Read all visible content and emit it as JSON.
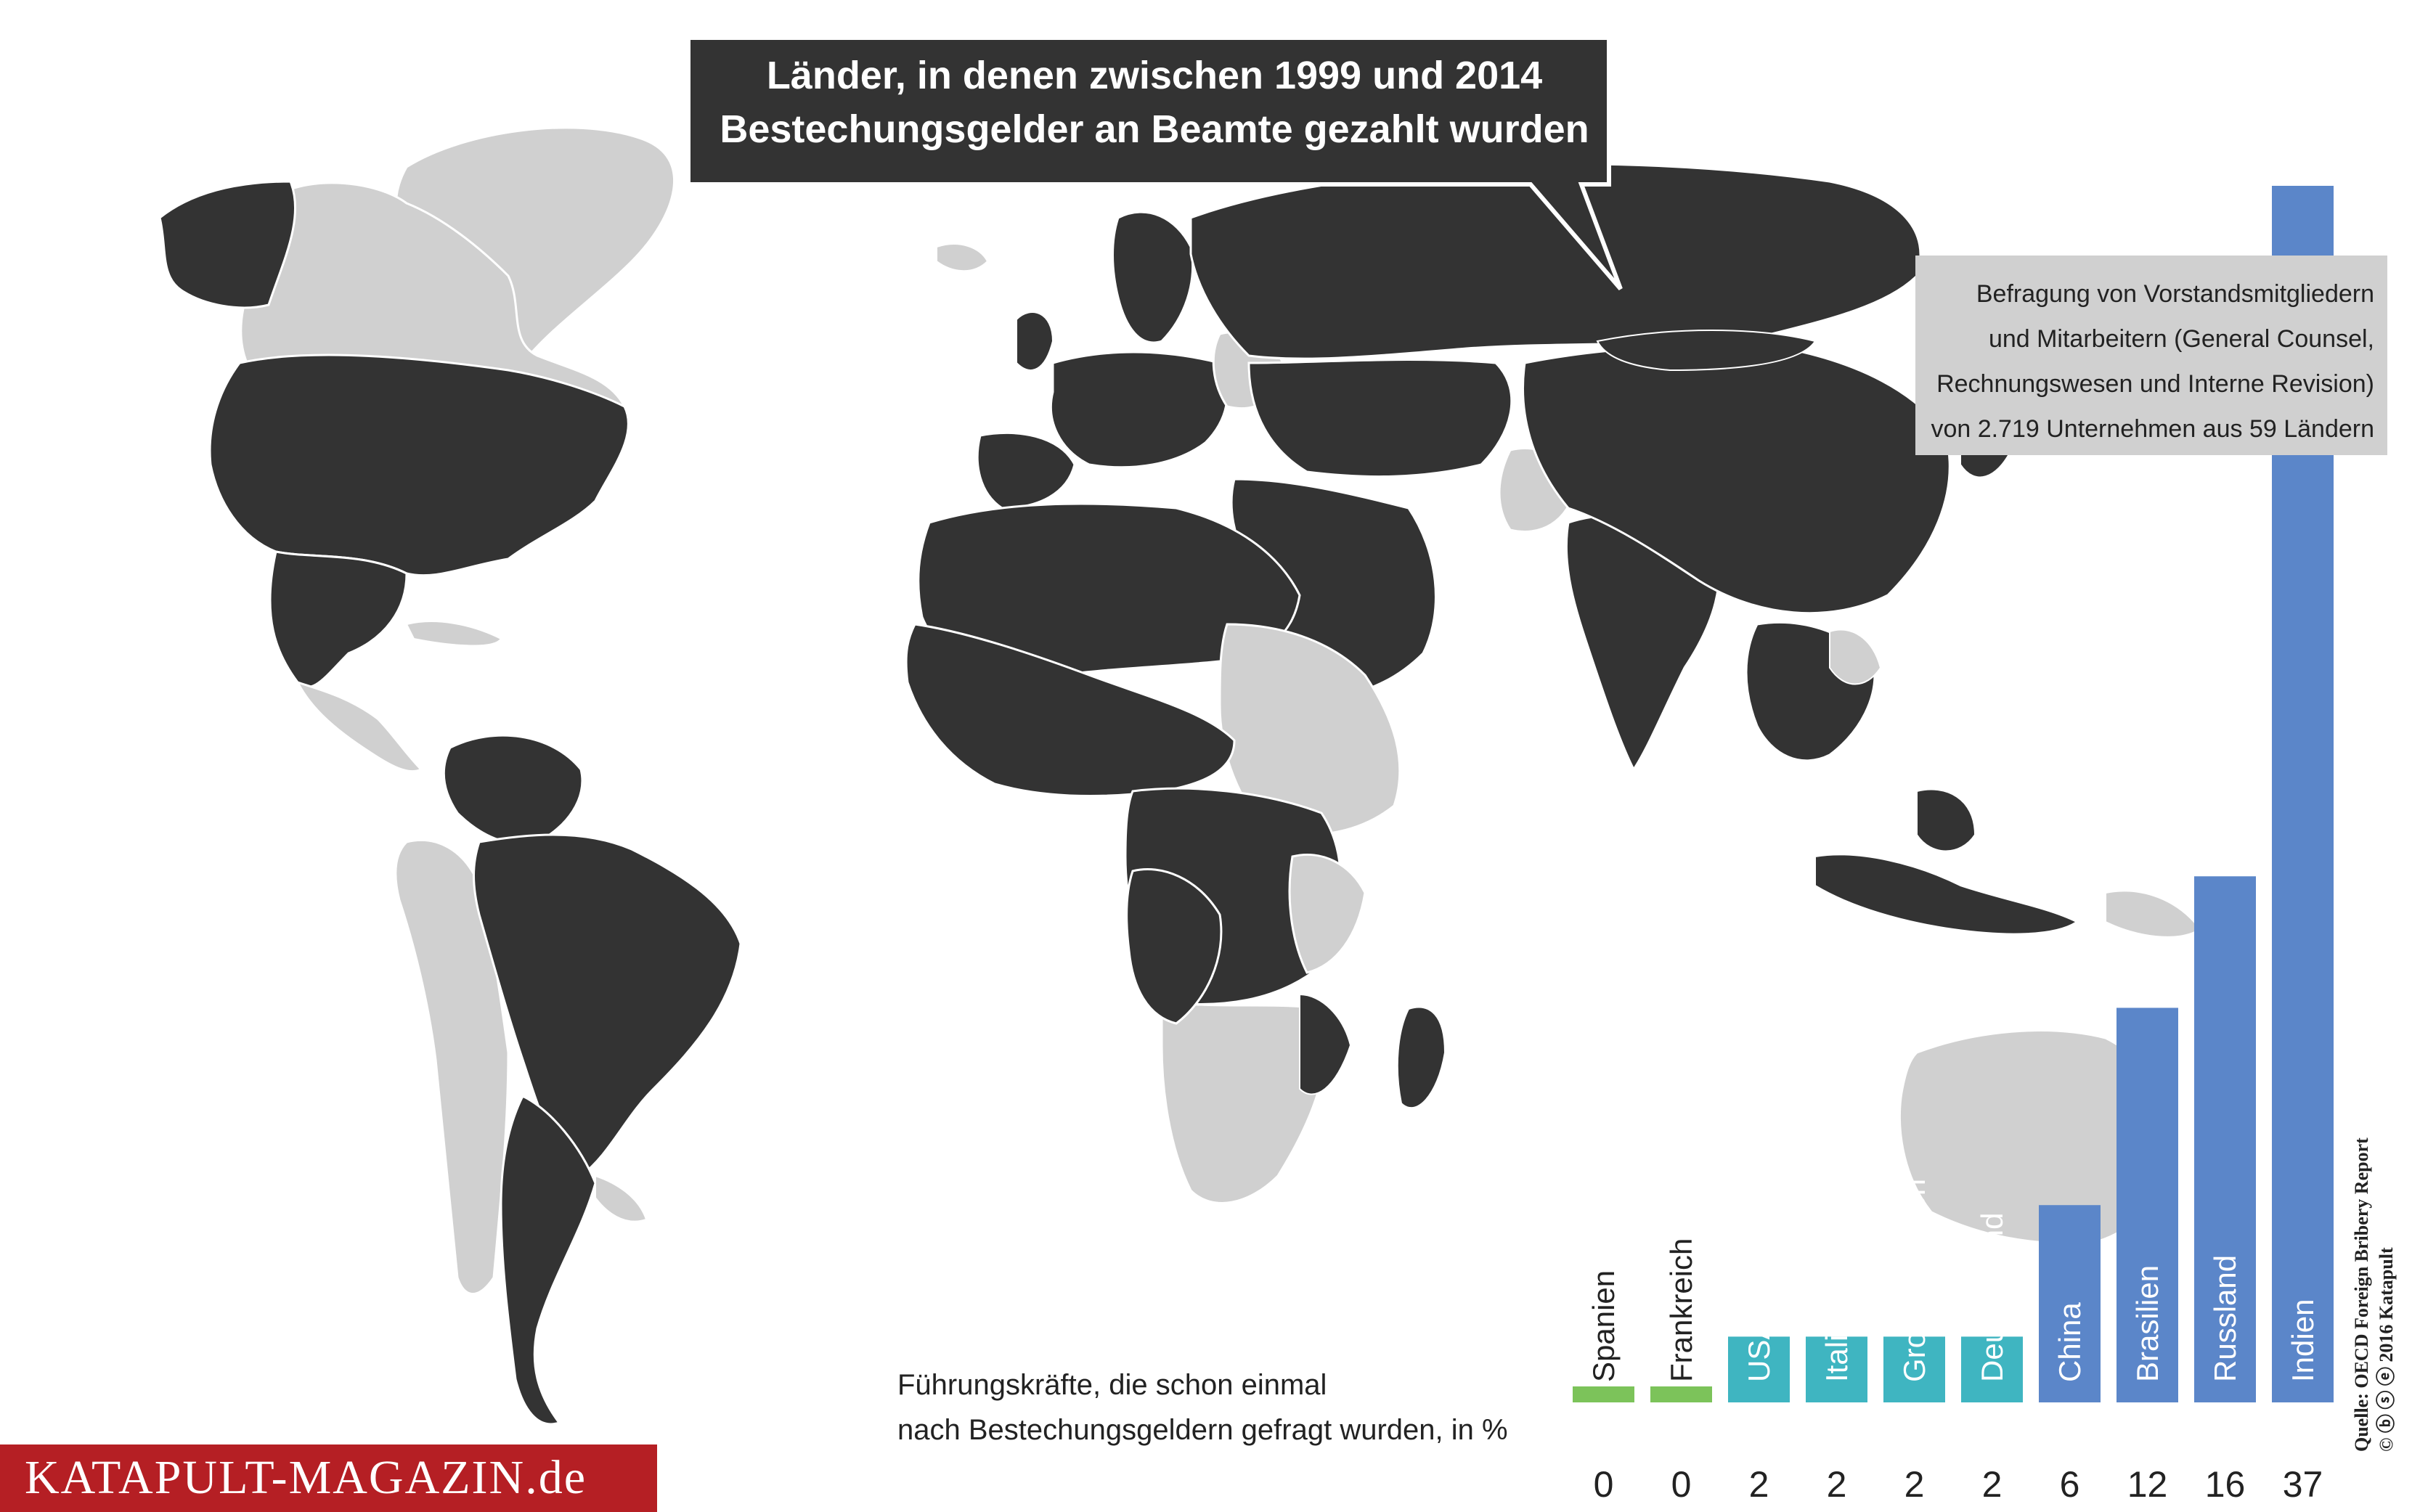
{
  "title": {
    "line1": "Länder, in denen zwischen 1999 und 2014",
    "line2": "Bestechungsgelder an Beamte gezahlt wurden"
  },
  "survey_note": {
    "line1": "Befragung von Vorstandsmitgliedern",
    "line2": "und Mitarbeitern (General Counsel,",
    "line3": "Rechnungswesen und Interne Revision)",
    "line4": "von 2.719 Unternehmen aus 59 Ländern"
  },
  "colors": {
    "map_bribery": "#333333",
    "map_other": "#d0d0d0",
    "bar_green": "#7cc35a",
    "bar_teal": "#3fb5c1",
    "bar_blue": "#5b86c9",
    "brand_red": "#b51f24"
  },
  "map_legend": {
    "highlighted_meaning": "Länder, in denen Bestechungsgelder an Beamte gezahlt wurden"
  },
  "chart_data": {
    "type": "bar",
    "categories": [
      "Spanien",
      "Frankreich",
      "USA",
      "Italien",
      "Großbritannien",
      "Deutschland",
      "China",
      "Brasilien",
      "Russland",
      "Indien"
    ],
    "values": [
      0,
      0,
      2,
      2,
      2,
      2,
      6,
      12,
      16,
      37
    ],
    "value_labels": [
      "0",
      "0",
      "2",
      "2",
      "2",
      "2",
      "6",
      "12",
      "16",
      "37"
    ],
    "bar_colors": [
      "#7cc35a",
      "#7cc35a",
      "#3fb5c1",
      "#3fb5c1",
      "#3fb5c1",
      "#3fb5c1",
      "#5b86c9",
      "#5b86c9",
      "#5b86c9",
      "#5b86c9"
    ],
    "title": "",
    "xlabel": "",
    "ylabel": "",
    "ylim": [
      0,
      37
    ]
  },
  "caption": {
    "line1": "Führungskräfte, die schon einmal",
    "line2": "nach Bestechungsgeldern gefragt wurden, in %"
  },
  "source": {
    "line1": "Quelle: OECD Foreign Bribery Report",
    "line2": "© ⓑ ⓢ ⓔ 2016 Katapult"
  },
  "brand": {
    "text": "KATAPULT-MAGAZIN.de"
  }
}
